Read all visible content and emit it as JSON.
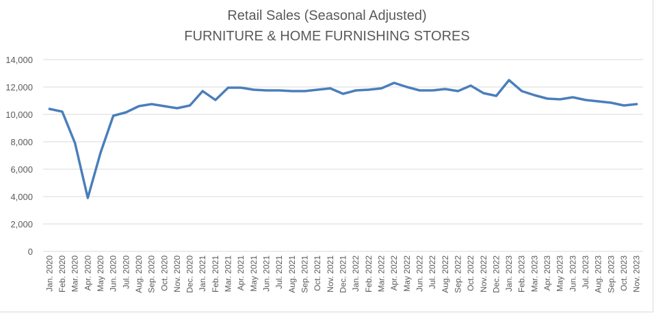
{
  "chart_data": {
    "type": "line",
    "title": "Retail Sales (Seasonal Adjusted)",
    "subtitle": "FURNITURE & HOME FURNISHING STORES",
    "xlabel": "",
    "ylabel": "",
    "ylim": [
      0,
      14000
    ],
    "yticks": [
      "0",
      "2,000",
      "4,000",
      "6,000",
      "8,000",
      "10,000",
      "12,000",
      "14,000"
    ],
    "grid": true,
    "line_color": "#4a7ebb",
    "categories": [
      "Jan. 2020",
      "Feb. 2020",
      "Mar. 2020",
      "Apr. 2020",
      "May 2020",
      "Jun. 2020",
      "Jul. 2020",
      "Aug. 2020",
      "Sep. 2020",
      "Oct. 2020",
      "Nov. 2020",
      "Dec. 2020",
      "Jan. 2021",
      "Feb. 2021",
      "Mar. 2021",
      "Apr. 2021",
      "May 2021",
      "Jun. 2021",
      "Jul. 2021",
      "Aug. 2021",
      "Sep. 2021",
      "Oct. 2021",
      "Nov. 2021",
      "Dec. 2021",
      "Jan. 2022",
      "Feb. 2022",
      "Mar. 2022",
      "Apr. 2022",
      "May 2022",
      "Jun. 2022",
      "Jul. 2022",
      "Aug. 2022",
      "Sep. 2022",
      "Oct. 2022",
      "Nov. 2022",
      "Dec. 2022",
      "Jan. 2023",
      "Feb. 2023",
      "Mar. 2023",
      "Apr. 2023",
      "May 2023",
      "Jun. 2023",
      "Jul. 2023",
      "Aug. 2023",
      "Sep. 2023",
      "Oct. 2023",
      "Nov. 2023"
    ],
    "values": [
      10400,
      10200,
      7900,
      3900,
      7200,
      9900,
      10150,
      10600,
      10750,
      10600,
      10450,
      10650,
      11700,
      11050,
      11950,
      11950,
      11800,
      11750,
      11750,
      11700,
      11700,
      11800,
      11900,
      11500,
      11750,
      11800,
      11900,
      12300,
      12000,
      11750,
      11750,
      11850,
      11700,
      12100,
      11550,
      11350,
      12500,
      11700,
      11400,
      11150,
      11100,
      11250,
      11050,
      10950,
      10850,
      10650,
      10750
    ]
  }
}
